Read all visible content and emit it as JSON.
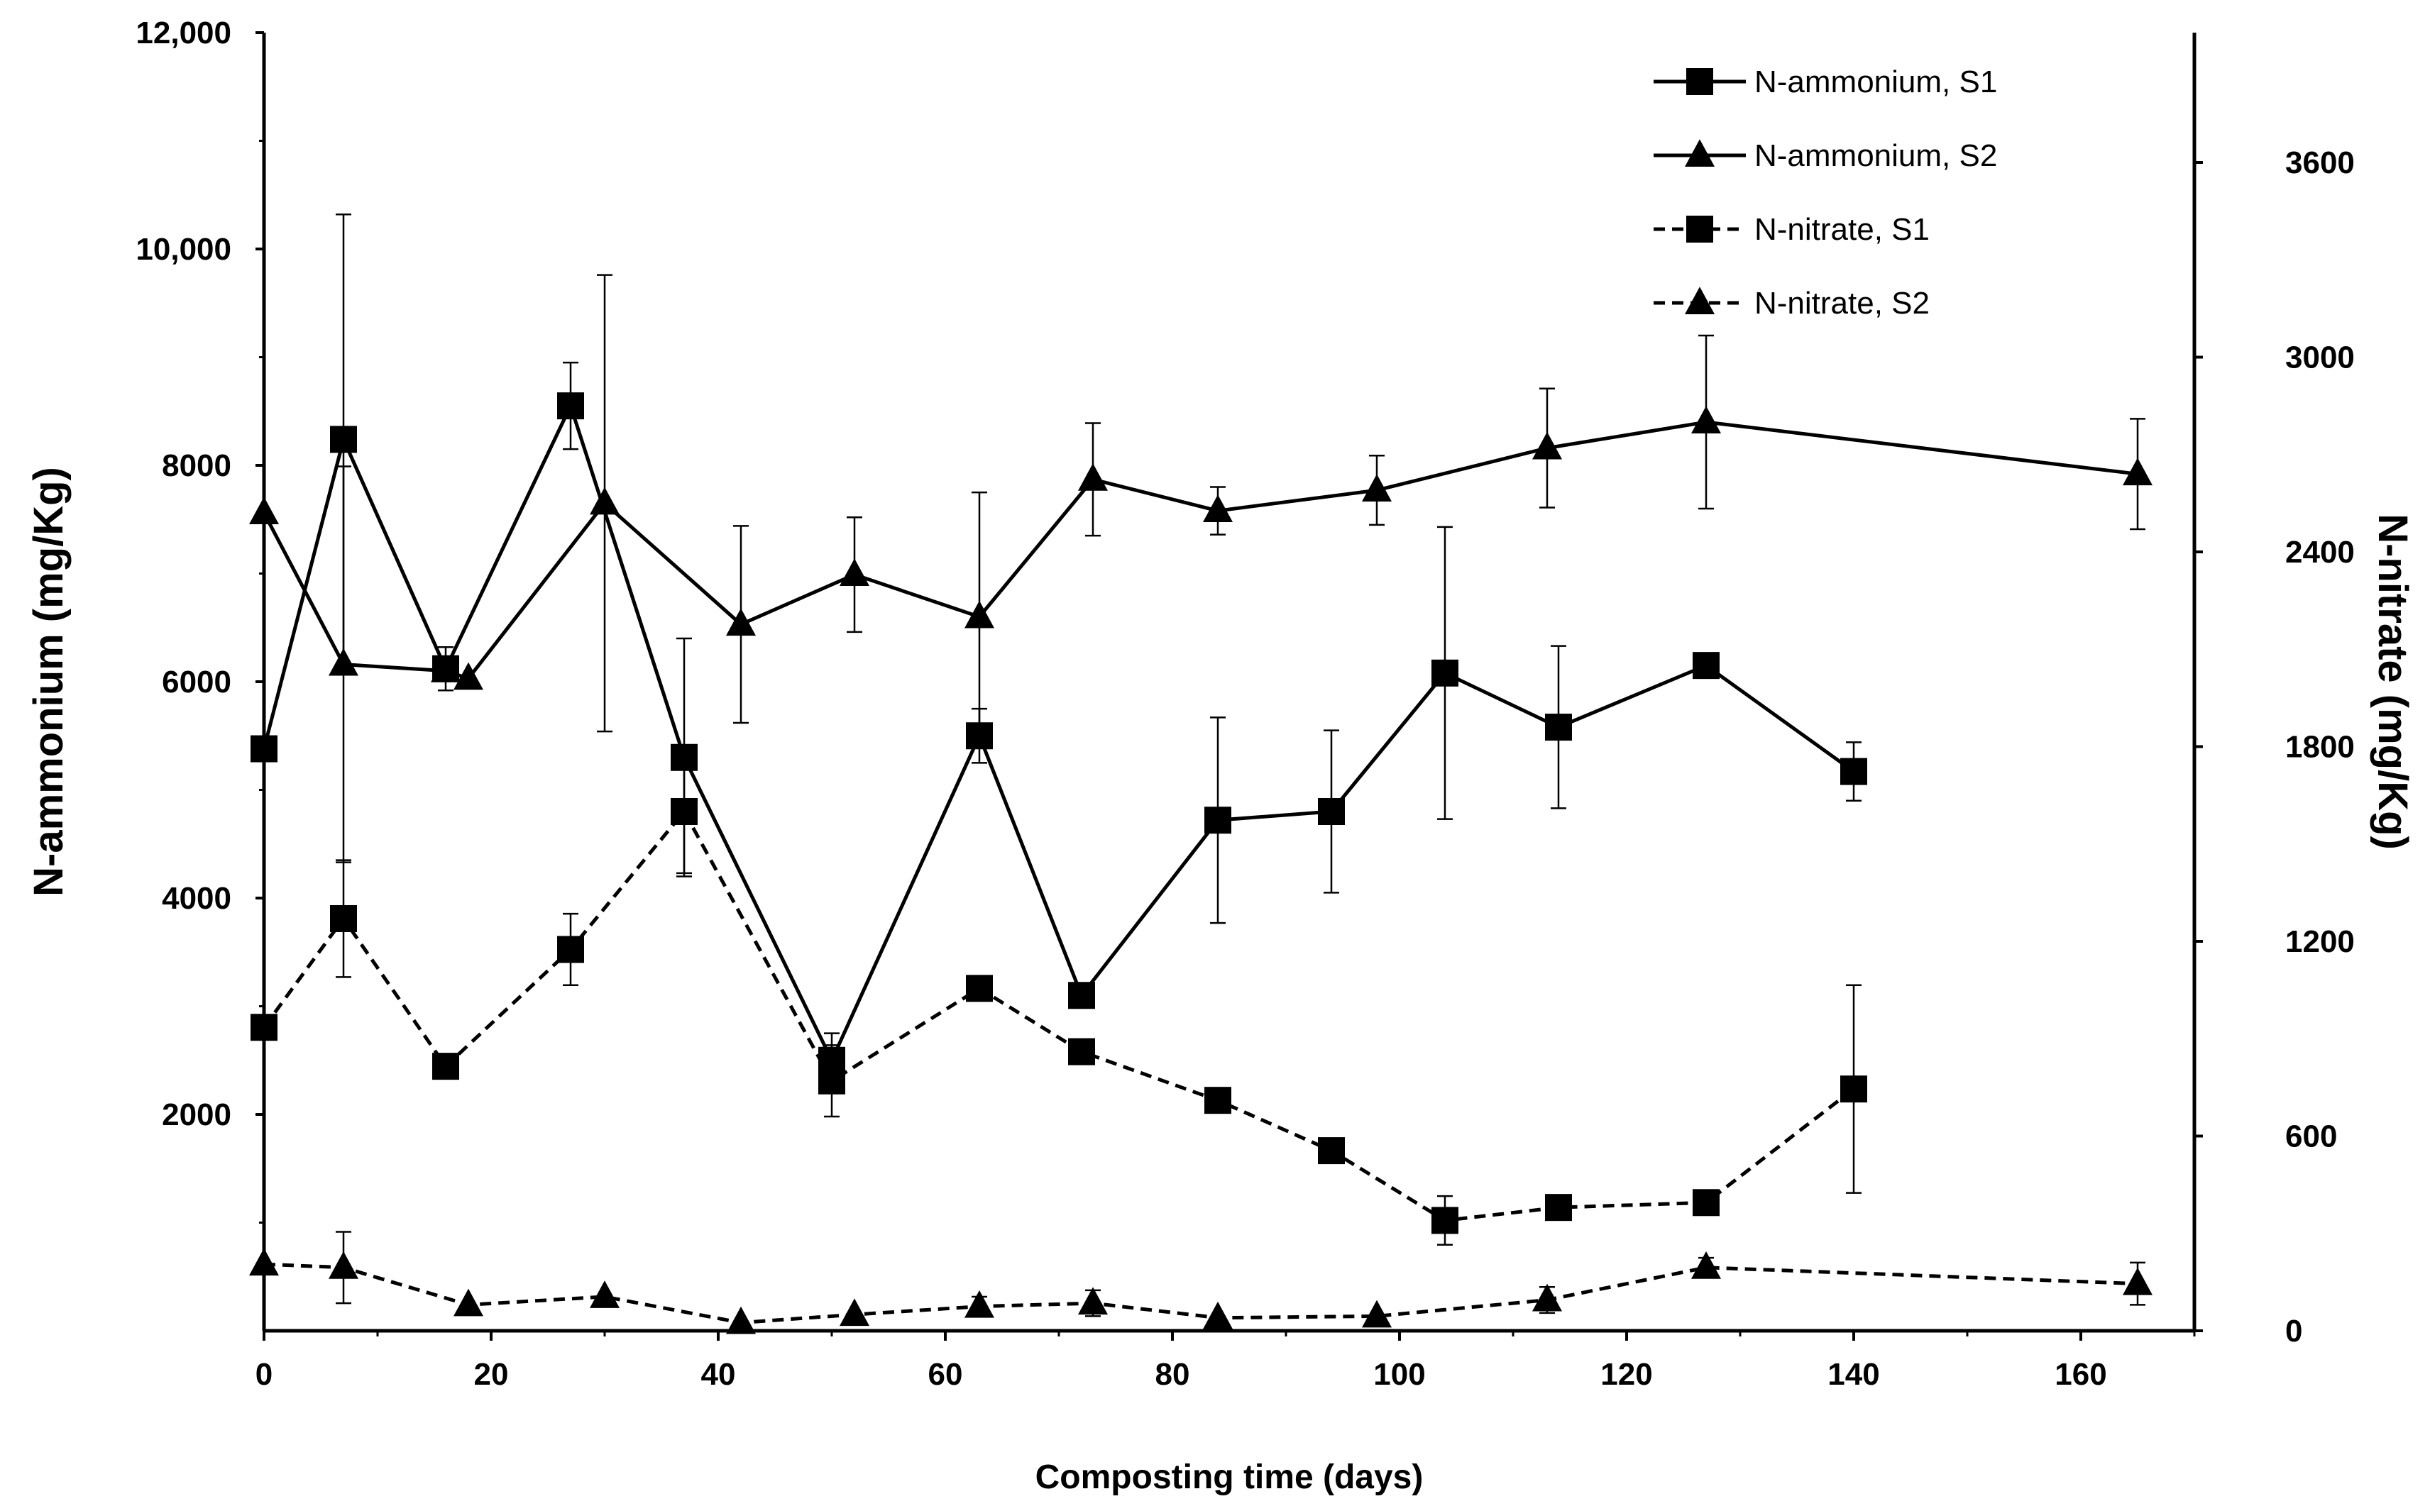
{
  "chart_data": {
    "type": "line",
    "title": "",
    "xlabel": "Composting time (days)",
    "ylabel": "N-ammonium (mg/Kg)",
    "y2label": "N-nitrate (mg/Kg)",
    "xlim": [
      0,
      170
    ],
    "ylim": [
      0,
      12000
    ],
    "y2lim": [
      0,
      4000
    ],
    "x_ticks": [
      0,
      20,
      40,
      60,
      80,
      100,
      120,
      140,
      160
    ],
    "x_tick_labels": [
      "0",
      "20",
      "40",
      "60",
      "80",
      "100",
      "120",
      "140",
      "160"
    ],
    "y_ticks": [
      2000,
      4000,
      6000,
      8000,
      10000,
      12000
    ],
    "y_tick_labels": [
      "2000",
      "4000",
      "6000",
      "8000",
      "10,000",
      "12,000"
    ],
    "y2_ticks": [
      0,
      600,
      1200,
      1800,
      2400,
      3000,
      3600
    ],
    "y2_tick_labels": [
      "0",
      "600",
      "1200",
      "1800",
      "2400",
      "3000",
      "3600"
    ],
    "grid": false,
    "legend_position": "top-right",
    "series": [
      {
        "name": "N-ammonium, S1",
        "axis": "left",
        "marker": "square",
        "dash": "solid",
        "x": [
          0,
          7,
          16,
          27,
          37,
          50,
          63,
          72,
          84,
          94,
          104,
          114,
          127,
          140
        ],
        "y": [
          5380,
          8240,
          6120,
          8550,
          5300,
          2500,
          5500,
          3100,
          4720,
          4800,
          6080,
          5580,
          6150,
          5170
        ],
        "err": [
          0,
          2080,
          200,
          400,
          1100,
          250,
          250,
          0,
          950,
          750,
          1350,
          750,
          0,
          270
        ]
      },
      {
        "name": "N-ammonium, S2",
        "axis": "left",
        "marker": "triangle",
        "dash": "solid",
        "x": [
          0,
          7,
          16,
          18,
          30,
          42,
          52,
          63,
          73,
          84,
          98,
          113,
          127,
          165
        ],
        "y": [
          7560,
          6160,
          6100,
          6030,
          7650,
          6530,
          6990,
          6600,
          7870,
          7580,
          7770,
          8160,
          8400,
          7920
        ],
        "err": [
          0,
          1830,
          0,
          0,
          2110,
          910,
          530,
          1150,
          520,
          220,
          320,
          550,
          800,
          510
        ]
      },
      {
        "name": "N-nitrate, S1",
        "axis": "right",
        "marker": "square",
        "dash": "dashed",
        "x": [
          0,
          7,
          16,
          27,
          37,
          50,
          63,
          72,
          84,
          94,
          104,
          114,
          127,
          140
        ],
        "y": [
          935,
          1270,
          815,
          1175,
          1600,
          770,
          1055,
          860,
          710,
          555,
          340,
          380,
          395,
          745
        ],
        "err": [
          0,
          180,
          0,
          110,
          190,
          110,
          0,
          0,
          0,
          0,
          75,
          0,
          30,
          320
        ]
      },
      {
        "name": "N-nitrate, S2",
        "axis": "right",
        "marker": "triangle",
        "dash": "dashed",
        "x": [
          0,
          7,
          18,
          30,
          42,
          52,
          63,
          73,
          84,
          98,
          113,
          127,
          165
        ],
        "y": [
          205,
          195,
          80,
          105,
          25,
          50,
          75,
          85,
          40,
          45,
          95,
          195,
          145
        ],
        "err": [
          0,
          110,
          0,
          0,
          0,
          0,
          30,
          40,
          0,
          0,
          40,
          30,
          65
        ]
      }
    ]
  }
}
